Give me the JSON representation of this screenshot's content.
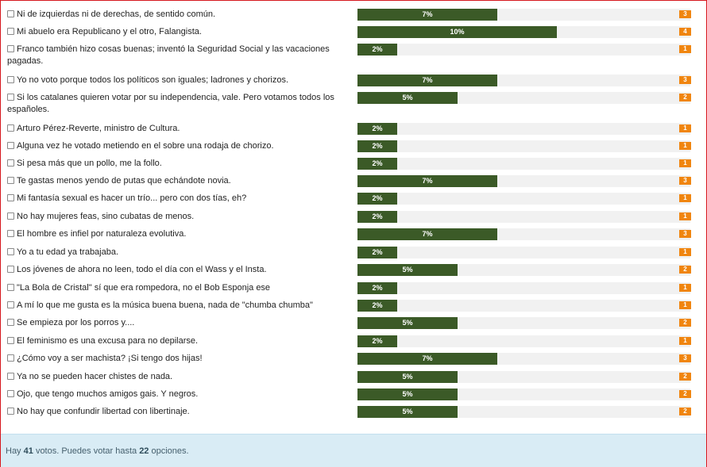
{
  "poll": {
    "options": [
      {
        "label": "Ni de izquierdas ni de derechas, de sentido común.",
        "percent_label": "7%",
        "percent": 7,
        "votes": "3"
      },
      {
        "label": "Mi abuelo era Republicano y el otro, Falangista.",
        "percent_label": "10%",
        "percent": 10,
        "votes": "4"
      },
      {
        "label": "Franco también hizo cosas buenas; inventó la Seguridad Social y las vacaciones pagadas.",
        "percent_label": "2%",
        "percent": 2,
        "votes": "1"
      },
      {
        "label": "Yo no voto porque todos los políticos son iguales; ladrones y chorizos.",
        "percent_label": "7%",
        "percent": 7,
        "votes": "3"
      },
      {
        "label": "Si los catalanes quieren votar por su independencia, vale. Pero votamos todos los españoles.",
        "percent_label": "5%",
        "percent": 5,
        "votes": "2"
      },
      {
        "label": "Arturo Pérez-Reverte, ministro de Cultura.",
        "percent_label": "2%",
        "percent": 2,
        "votes": "1"
      },
      {
        "label": "Alguna vez he votado metiendo en el sobre una rodaja de chorizo.",
        "percent_label": "2%",
        "percent": 2,
        "votes": "1"
      },
      {
        "label": "Si pesa más que un pollo, me la follo.",
        "percent_label": "2%",
        "percent": 2,
        "votes": "1"
      },
      {
        "label": "Te gastas menos yendo de putas que echándote novia.",
        "percent_label": "7%",
        "percent": 7,
        "votes": "3"
      },
      {
        "label": "Mi fantasía sexual es hacer un trío... pero con dos tías, eh?",
        "percent_label": "2%",
        "percent": 2,
        "votes": "1"
      },
      {
        "label": "No hay mujeres feas, sino cubatas de menos.",
        "percent_label": "2%",
        "percent": 2,
        "votes": "1"
      },
      {
        "label": "El hombre es infiel por naturaleza evolutiva.",
        "percent_label": "7%",
        "percent": 7,
        "votes": "3"
      },
      {
        "label": "Yo a tu edad ya trabajaba.",
        "percent_label": "2%",
        "percent": 2,
        "votes": "1"
      },
      {
        "label": "Los jóvenes de ahora no leen, todo el día con el Wass y el Insta.",
        "percent_label": "5%",
        "percent": 5,
        "votes": "2"
      },
      {
        "label": "\"La Bola de Cristal\" sí que era rompedora, no el Bob Esponja ese",
        "percent_label": "2%",
        "percent": 2,
        "votes": "1"
      },
      {
        "label": "A mí lo que me gusta es la música buena buena, nada de \"chumba chumba\"",
        "percent_label": "2%",
        "percent": 2,
        "votes": "1"
      },
      {
        "label": "Se empieza por los porros y....",
        "percent_label": "5%",
        "percent": 5,
        "votes": "2"
      },
      {
        "label": "El feminismo es una excusa para no depilarse.",
        "percent_label": "2%",
        "percent": 2,
        "votes": "1"
      },
      {
        "label": "¿Cómo voy a ser machista? ¡Si tengo dos hijas!",
        "percent_label": "7%",
        "percent": 7,
        "votes": "3"
      },
      {
        "label": "Ya no se pueden hacer chistes de nada.",
        "percent_label": "5%",
        "percent": 5,
        "votes": "2"
      },
      {
        "label": "Ojo, que tengo muchos amigos gais. Y negros.",
        "percent_label": "5%",
        "percent": 5,
        "votes": "2"
      },
      {
        "label": "No hay que confundir libertad con libertinaje.",
        "percent_label": "5%",
        "percent": 5,
        "votes": "2"
      }
    ]
  },
  "footer": {
    "prefix": "Hay",
    "total_votes": "41",
    "middle": "votos. Puedes votar hasta",
    "max_options": "22",
    "suffix": "opciones."
  },
  "colors": {
    "bar_fill": "#3b5a27",
    "bar_track": "#f1f1f1",
    "count_badge": "#f0850f",
    "footer_bg": "#d9ecf5",
    "frame_border": "#d6181e"
  }
}
